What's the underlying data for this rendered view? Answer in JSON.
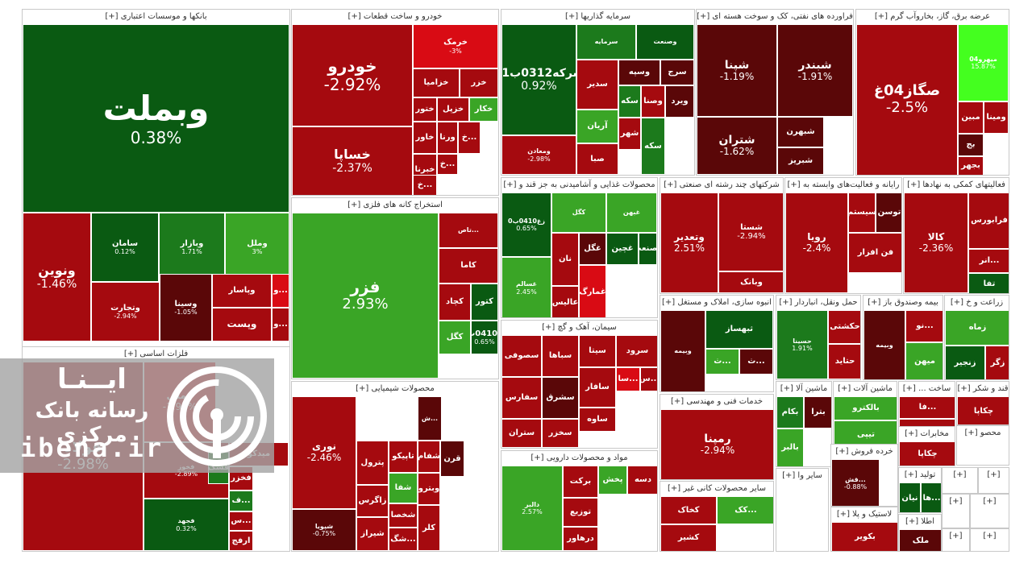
{
  "palette": {
    "dg": "#0a5a12",
    "g": "#1c7a1c",
    "lg": "#3aa526",
    "vg": "#44ff1f",
    "dr": "#5a0708",
    "r": "#a50a0f",
    "br": "#d90b14",
    "gray": "#8c8c8c",
    "wm": "#a5a5a5"
  },
  "watermark": {
    "brand": "ایــنـا",
    "subtitle": "رسانه بانک مرکزی",
    "url": "ibena.ir",
    "logo": "ibena-logo"
  },
  "sectors": [
    {
      "key": "banks",
      "title": "بانکها و موسسات اعتباری [+]"
    },
    {
      "key": "auto",
      "title": "خودرو و ساخت قطعات [+]"
    },
    {
      "key": "invest",
      "title": "سرمایه گذاریها [+]"
    },
    {
      "key": "oil",
      "title": "فراورده های نفتی، کک و سوخت هسته ای [+]"
    },
    {
      "key": "utility",
      "title": "عرضه برق، گاز، بخاروآب گرم [+]"
    },
    {
      "key": "metals",
      "title": "فلزات اساسی [+]"
    },
    {
      "key": "mining",
      "title": "استخراج کانه های فلزی [+]"
    },
    {
      "key": "food",
      "title": "محصولات غذایی و آشامیدنی به جز قند و [+]"
    },
    {
      "key": "multi",
      "title": "شرکتهای چند رشته ای صنعتی [+]"
    },
    {
      "key": "telecom",
      "title": "رایانه و فعالیت‌های وابسته به [+]"
    },
    {
      "key": "finaux",
      "title": "فعالیتهای کمکی به نهادها [+]"
    },
    {
      "key": "chem",
      "title": "محصولات شیمیایی [+]"
    },
    {
      "key": "cement",
      "title": "سیمان، آهک و گچ [+]"
    },
    {
      "key": "pharma",
      "title": "مواد و محصولات دارویی [+]"
    },
    {
      "key": "realestate",
      "title": "انبوه سازی، املاک و مستغل [+]"
    },
    {
      "key": "transport",
      "title": "حمل ونقل، انباردار [+]"
    },
    {
      "key": "insurance",
      "title": "بیمه وصندوق باز [+]"
    },
    {
      "key": "agri",
      "title": "زراعت و خ [+]"
    },
    {
      "key": "engserv",
      "title": "خدمات فنی و مهندسی [+]"
    },
    {
      "key": "machinery",
      "title": "ماشین آلا [+]"
    },
    {
      "key": "device",
      "title": "ماشین آلات [+]"
    },
    {
      "key": "construction",
      "title": "ساخت ... [+]"
    },
    {
      "key": "sugar",
      "title": "قند و شکر [+]"
    },
    {
      "key": "nonmetal",
      "title": "سایر محصولات کانی غیر [+]"
    },
    {
      "key": "other",
      "title": "سایر وا [+]"
    },
    {
      "key": "retail",
      "title": "خرده فروش [+]"
    },
    {
      "key": "telecom2",
      "title": "مخابرات [+]"
    },
    {
      "key": "textile",
      "title": "محصو [+]"
    },
    {
      "key": "plastic",
      "title": "لاستیک و پلا [+]"
    },
    {
      "key": "production",
      "title": "تولید [+]"
    },
    {
      "key": "info",
      "title": "اطلا [+]"
    },
    {
      "key": "s1",
      "title": "[+]"
    },
    {
      "key": "s2",
      "title": "[+]"
    },
    {
      "key": "s3",
      "title": "[+]"
    },
    {
      "key": "s4",
      "title": "[+]"
    },
    {
      "key": "s5",
      "title": "[+]"
    },
    {
      "key": "s6",
      "title": "[+]"
    }
  ],
  "tiles": {
    "vbmellat": {
      "symbol": "وبملت",
      "pct": "0.38%",
      "color": "dg"
    },
    "vanvin": {
      "symbol": "ونوین",
      "pct": "-1.46%",
      "color": "r"
    },
    "samayan": {
      "symbol": "سامان",
      "pct": "0.12%",
      "color": "dg"
    },
    "vbazar": {
      "symbol": "وبازار",
      "pct": "1.71%",
      "color": "g"
    },
    "vmel": {
      "symbol": "وملل",
      "pct": "3%",
      "color": "lg"
    },
    "vtejarat": {
      "symbol": "وتجارت",
      "pct": "-2.94%",
      "color": "r"
    },
    "vsina": {
      "symbol": "وسینا",
      "pct": "-1.05%",
      "color": "dr"
    },
    "vpasar": {
      "symbol": "وپاسار",
      "pct": "",
      "color": "r"
    },
    "vbank1": {
      "symbol": "و...",
      "pct": "",
      "color": "br"
    },
    "vpost": {
      "symbol": "وپست",
      "pct": "",
      "color": "r"
    },
    "vbank2": {
      "symbol": "و...",
      "pct": "",
      "color": "r"
    },
    "khodro": {
      "symbol": "خودرو",
      "pct": "-2.92%",
      "color": "r"
    },
    "khsapa": {
      "symbol": "خساپا",
      "pct": "-2.37%",
      "color": "r"
    },
    "kharmok": {
      "symbol": "خرمک",
      "pct": "-3%",
      "color": "br"
    },
    "khazamya": {
      "symbol": "خزامیا",
      "pct": "",
      "color": "r"
    },
    "khazar": {
      "symbol": "خزر",
      "pct": "",
      "color": "r"
    },
    "khavar": {
      "symbol": "خاور",
      "pct": "",
      "color": "r"
    },
    "khtor": {
      "symbol": "ختور",
      "pct": "",
      "color": "r"
    },
    "khzpl": {
      "symbol": "خزپل",
      "pct": "",
      "color": "r"
    },
    "khekar": {
      "symbol": "خکار",
      "pct": "",
      "color": "lg"
    },
    "vrna": {
      "symbol": "ورنا",
      "pct": "",
      "color": "r"
    },
    "khch1": {
      "symbol": "خ...",
      "pct": "",
      "color": "r"
    },
    "khbrna": {
      "symbol": "خبرنا",
      "pct": "",
      "color": "r"
    },
    "khch2": {
      "symbol": "خ...",
      "pct": "",
      "color": "r"
    },
    "khch3": {
      "symbol": "خ...",
      "pct": "",
      "color": "r"
    },
    "vsarmayeh": {
      "symbol": "سرمایه",
      "pct": "",
      "color": "g"
    },
    "vesanat": {
      "symbol": "وصنعت",
      "pct": "",
      "color": "dg"
    },
    "sreke": {
      "symbol": "سرکه0312ب01",
      "pct": "0.92%",
      "color": "dg"
    },
    "sdir": {
      "symbol": "سدیر",
      "pct": "",
      "color": "r"
    },
    "vsaye": {
      "symbol": "وسپه",
      "pct": "",
      "color": "dr"
    },
    "serj": {
      "symbol": "سرج",
      "pct": "",
      "color": "dr"
    },
    "vsan": {
      "symbol": "ومعادن",
      "pct": "-2.98%",
      "color": "r"
    },
    "aryan": {
      "symbol": "آریان",
      "pct": "",
      "color": "lg"
    },
    "seke": {
      "symbol": "سکه",
      "pct": "",
      "color": "g"
    },
    "vsna": {
      "symbol": "وصنا",
      "pct": "",
      "color": "r"
    },
    "vyrd": {
      "symbol": "ویرد",
      "pct": "",
      "color": "dr"
    },
    "shahr": {
      "symbol": "شهر",
      "pct": "",
      "color": "r"
    },
    "sabah": {
      "symbol": "صبا",
      "pct": "",
      "color": "r"
    },
    "seke2": {
      "symbol": "سکه",
      "pct": "",
      "color": "g"
    },
    "shina": {
      "symbol": "شپنا",
      "pct": "-1.19%",
      "color": "dr"
    },
    "shbndr": {
      "symbol": "شبندر",
      "pct": "-1.91%",
      "color": "dr"
    },
    "shtran": {
      "symbol": "شتران",
      "pct": "-1.62%",
      "color": "dr"
    },
    "shbhrn": {
      "symbol": "شبهرن",
      "pct": "",
      "color": "dr"
    },
    "shbriz": {
      "symbol": "شبریز",
      "pct": "",
      "color": "dr"
    },
    "sgaz": {
      "symbol": "صگاز04غ",
      "pct": "-2.5%",
      "color": "r"
    },
    "mihr": {
      "symbol": "میهرو04",
      "pct": "15.87%",
      "color": "vg"
    },
    "vmina": {
      "symbol": "ومینا",
      "pct": "",
      "color": "r"
    },
    "mbin": {
      "symbol": "مبین",
      "pct": "",
      "color": "r"
    },
    "bjah": {
      "symbol": "بج",
      "pct": "",
      "color": "dr"
    },
    "bjhr": {
      "symbol": "بجهر",
      "pct": "",
      "color": "r"
    },
    "folad": {
      "symbol": "فولاد",
      "pct": "-2.98%",
      "color": "r"
    },
    "fmli": {
      "symbol": "فملی",
      "pct": "-1.95%",
      "color": "br"
    },
    "fkhuz": {
      "symbol": "فخوز",
      "pct": "-2.89%",
      "color": "r"
    },
    "fjhd": {
      "symbol": "فجهد",
      "pct": "0.32%",
      "color": "dg"
    },
    "fsoc": {
      "symbol": "فسک",
      "pct": "",
      "color": "g"
    },
    "vmdko": {
      "symbol": "میدکو",
      "pct": "",
      "color": "r"
    },
    "khzr": {
      "symbol": "فخزر",
      "pct": "",
      "color": "r"
    },
    "fs": {
      "symbol": "ف...",
      "pct": "",
      "color": "g"
    },
    "sarmy": {
      "symbol": "س...",
      "pct": "",
      "color": "r"
    },
    "arfj": {
      "symbol": "ارفج",
      "pct": "",
      "color": "r"
    },
    "fazr": {
      "symbol": "فزر",
      "pct": "2.93%",
      "color": "lg"
    },
    "kama": {
      "symbol": "کاما",
      "pct": "",
      "color": "r"
    },
    "kchad": {
      "symbol": "کچاد",
      "pct": "",
      "color": "r"
    },
    "ktor": {
      "symbol": "کتور",
      "pct": "",
      "color": "dg"
    },
    "ktas": {
      "symbol": "تاص...",
      "pct": "",
      "color": "r"
    },
    "kgl": {
      "symbol": "کگل",
      "pct": "",
      "color": "lg"
    },
    "rgh": {
      "symbol": "زغ0410ب0",
      "pct": "0.65%",
      "color": "dg"
    },
    "kfl": {
      "symbol": "غگل",
      "pct": "",
      "color": "dr"
    },
    "gbh": {
      "symbol": "غبهن",
      "pct": "",
      "color": "lg"
    },
    "gnan": {
      "symbol": "نان",
      "pct": "",
      "color": "r"
    },
    "galis": {
      "symbol": "عالیس",
      "pct": "",
      "color": "r"
    },
    "gchin": {
      "symbol": "غچین",
      "pct": "",
      "color": "dg"
    },
    "gslam": {
      "symbol": "غسالم",
      "pct": "2.45%",
      "color": "lg"
    },
    "gmrg": {
      "symbol": "غمارگ",
      "pct": "",
      "color": "br"
    },
    "vtid": {
      "symbol": "وتعدیر",
      "pct": "2.51%",
      "color": "r"
    },
    "shsta": {
      "symbol": "شستا",
      "pct": "-2.94%",
      "color": "r"
    },
    "vbank": {
      "symbol": "وبانک",
      "pct": "",
      "color": "r"
    },
    "rvya": {
      "symbol": "رویا",
      "pct": "-2.4%",
      "color": "r"
    },
    "sistm": {
      "symbol": "سیستم",
      "pct": "",
      "color": "r"
    },
    "tvsn": {
      "symbol": "توسن",
      "pct": "",
      "color": "dr"
    },
    "fnafzar": {
      "symbol": "فن افزار",
      "pct": "",
      "color": "r"
    },
    "kala": {
      "symbol": "کالا",
      "pct": "-2.36%",
      "color": "r"
    },
    "frabors": {
      "symbol": "فرابورس",
      "pct": "",
      "color": "r"
    },
    "anr": {
      "symbol": "انر...",
      "pct": "",
      "color": "r"
    },
    "tfa": {
      "symbol": "تفا",
      "pct": "",
      "color": "dg"
    },
    "nori": {
      "symbol": "نوری",
      "pct": "-2.46%",
      "color": "r"
    },
    "petrol": {
      "symbol": "پترول",
      "pct": "",
      "color": "r"
    },
    "zagros": {
      "symbol": "زاگرس",
      "pct": "",
      "color": "r"
    },
    "shiraz": {
      "symbol": "شیراز",
      "pct": "",
      "color": "r"
    },
    "tapiko": {
      "symbol": "تاپیکو",
      "pct": "",
      "color": "r"
    },
    "shfa": {
      "symbol": "شفا",
      "pct": "",
      "color": "lg"
    },
    "shkhsa": {
      "symbol": "شخصا",
      "pct": "",
      "color": "r"
    },
    "shg": {
      "symbol": "شگ...",
      "pct": "",
      "color": "r"
    },
    "shfam": {
      "symbol": "شفام",
      "pct": "",
      "color": "r"
    },
    "vistro": {
      "symbol": "وبترو",
      "pct": "",
      "color": "r"
    },
    "klr": {
      "symbol": "کلر",
      "pct": "",
      "color": "r"
    },
    "qrn": {
      "symbol": "قرن",
      "pct": "",
      "color": "dr"
    },
    "shsh": {
      "symbol": "ش...",
      "pct": "",
      "color": "dr"
    },
    "shpiv": {
      "symbol": "شپویا",
      "pct": "-0.75%",
      "color": "dr"
    },
    "sufi": {
      "symbol": "سصوفی",
      "pct": "",
      "color": "r"
    },
    "sfars": {
      "symbol": "سفارس",
      "pct": "",
      "color": "r"
    },
    "strn": {
      "symbol": "ستران",
      "pct": "",
      "color": "r"
    },
    "sbha": {
      "symbol": "سباها",
      "pct": "",
      "color": "r"
    },
    "sita": {
      "symbol": "سیتا",
      "pct": "",
      "color": "r"
    },
    "sro": {
      "symbol": "سرود",
      "pct": "",
      "color": "r"
    },
    "sshrq": {
      "symbol": "سشرق",
      "pct": "",
      "color": "dr"
    },
    "skhzr": {
      "symbol": "سخزر",
      "pct": "",
      "color": "r"
    },
    "sfr": {
      "symbol": "سافار",
      "pct": "",
      "color": "r"
    },
    "svh": {
      "symbol": "ساوه",
      "pct": "",
      "color": "r"
    },
    "ska": {
      "symbol": "سا...",
      "pct": "",
      "color": "br"
    },
    "sss": {
      "symbol": "س...",
      "pct": "",
      "color": "r"
    },
    "dalbr": {
      "symbol": "دالبر",
      "pct": "2.57%",
      "color": "lg"
    },
    "brkt": {
      "symbol": "برکت",
      "pct": "",
      "color": "r"
    },
    "tozi": {
      "symbol": "توزیع",
      "pct": "",
      "color": "r"
    },
    "drhvr": {
      "symbol": "درهاور",
      "pct": "",
      "color": "r"
    },
    "bkhsh": {
      "symbol": "پخش",
      "pct": "",
      "color": "lg"
    },
    "dse": {
      "symbol": "دسه",
      "pct": "",
      "color": "r"
    },
    "thbsz": {
      "symbol": "ثبهساز",
      "pct": "",
      "color": "dg"
    },
    "tch": {
      "symbol": "ث...",
      "pct": "",
      "color": "lg"
    },
    "tk": {
      "symbol": "ث...",
      "pct": "",
      "color": "dr"
    },
    "hsina": {
      "symbol": "حسینا",
      "pct": "1.91%",
      "color": "g"
    },
    "hkshti": {
      "symbol": "حکشتی",
      "pct": "",
      "color": "r"
    },
    "htid": {
      "symbol": "حتاید",
      "pct": "",
      "color": "r"
    },
    "vbimh": {
      "symbol": "وبیمه",
      "pct": "",
      "color": "dr"
    },
    "nno": {
      "symbol": "نو...",
      "pct": "",
      "color": "r"
    },
    "mihn": {
      "symbol": "میهن",
      "pct": "",
      "color": "lg"
    },
    "zmaeh": {
      "symbol": "زماه",
      "pct": "",
      "color": "lg"
    },
    "zgr": {
      "symbol": "زگر",
      "pct": "",
      "color": "r"
    },
    "zbjr": {
      "symbol": "زنجیر",
      "pct": "",
      "color": "dg"
    },
    "rmpna": {
      "symbol": "رمپنا",
      "pct": "-2.94%",
      "color": "r"
    },
    "bkam": {
      "symbol": "بکام",
      "pct": "",
      "color": "g"
    },
    "btra": {
      "symbol": "بترا",
      "pct": "",
      "color": "dr"
    },
    "balbr": {
      "symbol": "بالبر",
      "pct": "",
      "color": "lg"
    },
    "bktr": {
      "symbol": "بالکترو",
      "pct": "",
      "color": "lg"
    },
    "tipi": {
      "symbol": "تیپی",
      "pct": "",
      "color": "lg"
    },
    "fa": {
      "symbol": "فا...",
      "pct": "",
      "color": "r"
    },
    "frak": {
      "symbol": "فاراک",
      "pct": "",
      "color": "r"
    },
    "chkaba": {
      "symbol": "چکاپا",
      "pct": "",
      "color": "r"
    },
    "kkhak": {
      "symbol": "کخاک",
      "pct": "",
      "color": "r"
    },
    "kak": {
      "symbol": "کک...",
      "pct": "",
      "color": "lg"
    },
    "kshir": {
      "symbol": "کشیر",
      "pct": "",
      "color": "r"
    },
    "bkobr": {
      "symbol": "بکویر",
      "pct": "",
      "color": "r"
    },
    "nbian": {
      "symbol": "نیان",
      "pct": "",
      "color": "dg"
    },
    "hsa": {
      "symbol": "ها...",
      "pct": "",
      "color": "dg"
    },
    "mlk": {
      "symbol": "ملک",
      "pct": "",
      "color": "dr"
    },
    "gsh": {
      "symbol": "قش...",
      "pct": "-0.88%",
      "color": "dr"
    }
  }
}
